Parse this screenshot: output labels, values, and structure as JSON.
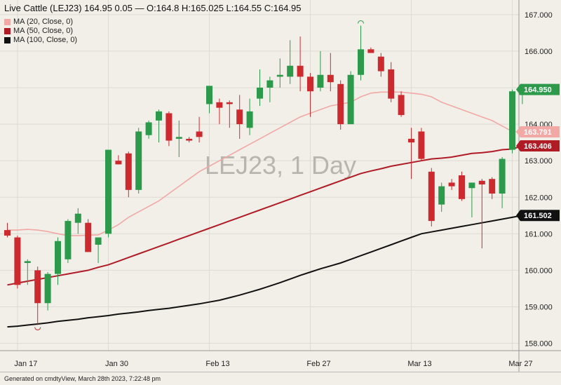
{
  "header": {
    "text": "Live Cattle (LEJ23) 164.95 0.05 — O:164.8 H:165.025 L:164.55 C:164.95"
  },
  "footer": {
    "text": "Generated on cmdtyView, March 28th 2023, 7:22:48 pm"
  },
  "chart_data": {
    "type": "candlestick",
    "symbol": "LEJ23",
    "watermark": "LEJ23, 1 Day",
    "y_range": [
      157.8,
      167.4
    ],
    "y_ticks": [
      158,
      159,
      160,
      161,
      162,
      163,
      164,
      165,
      166,
      167
    ],
    "y_tick_labels": [
      "158.000",
      "159.000",
      "160.000",
      "161.000",
      "162.000",
      "163.000",
      "164.000",
      "165.000",
      "166.000",
      "167.000"
    ],
    "x_tick_labels": [
      {
        "label": "Jan 17",
        "index": 1
      },
      {
        "label": "Jan 30",
        "index": 10
      },
      {
        "label": "Feb 13",
        "index": 20
      },
      {
        "label": "Feb 27",
        "index": 30
      },
      {
        "label": "Mar 13",
        "index": 40
      },
      {
        "label": "Mar 27",
        "index": 50
      }
    ],
    "candles": [
      {
        "o": 161.1,
        "h": 161.3,
        "l": 160.9,
        "c": 160.95
      },
      {
        "o": 160.9,
        "h": 160.95,
        "l": 159.5,
        "c": 159.6
      },
      {
        "o": 160.2,
        "h": 160.3,
        "l": 159.6,
        "c": 160.25
      },
      {
        "o": 160.0,
        "h": 160.1,
        "l": 158.5,
        "c": 159.1
      },
      {
        "o": 159.1,
        "h": 159.95,
        "l": 158.9,
        "c": 159.9
      },
      {
        "o": 159.9,
        "h": 160.9,
        "l": 159.6,
        "c": 160.8
      },
      {
        "o": 160.3,
        "h": 161.4,
        "l": 160.2,
        "c": 161.35
      },
      {
        "o": 161.3,
        "h": 161.7,
        "l": 161.0,
        "c": 161.55
      },
      {
        "o": 161.3,
        "h": 161.4,
        "l": 160.5,
        "c": 160.5
      },
      {
        "o": 160.7,
        "h": 160.9,
        "l": 160.2,
        "c": 160.9
      },
      {
        "o": 161.0,
        "h": 163.3,
        "l": 160.9,
        "c": 163.3
      },
      {
        "o": 163.0,
        "h": 163.15,
        "l": 162.9,
        "c": 162.9
      },
      {
        "o": 163.2,
        "h": 163.25,
        "l": 162.0,
        "c": 162.2
      },
      {
        "o": 162.2,
        "h": 163.9,
        "l": 162.1,
        "c": 163.8
      },
      {
        "o": 163.7,
        "h": 164.1,
        "l": 163.6,
        "c": 164.05
      },
      {
        "o": 164.1,
        "h": 164.4,
        "l": 163.5,
        "c": 164.35
      },
      {
        "o": 164.3,
        "h": 164.35,
        "l": 163.4,
        "c": 163.55
      },
      {
        "o": 163.6,
        "h": 164.1,
        "l": 163.1,
        "c": 163.65
      },
      {
        "o": 163.6,
        "h": 163.65,
        "l": 163.5,
        "c": 163.55
      },
      {
        "o": 163.8,
        "h": 164.2,
        "l": 163.5,
        "c": 163.65
      },
      {
        "o": 164.55,
        "h": 165.05,
        "l": 164.3,
        "c": 165.05
      },
      {
        "o": 164.6,
        "h": 164.7,
        "l": 164.0,
        "c": 164.45
      },
      {
        "o": 164.6,
        "h": 164.65,
        "l": 163.9,
        "c": 164.55
      },
      {
        "o": 164.4,
        "h": 164.8,
        "l": 163.6,
        "c": 164.0
      },
      {
        "o": 163.9,
        "h": 164.7,
        "l": 163.7,
        "c": 164.35
      },
      {
        "o": 164.7,
        "h": 165.5,
        "l": 164.5,
        "c": 165.0
      },
      {
        "o": 165.0,
        "h": 165.3,
        "l": 164.6,
        "c": 165.2
      },
      {
        "o": 165.3,
        "h": 165.8,
        "l": 165.0,
        "c": 165.35
      },
      {
        "o": 165.3,
        "h": 166.3,
        "l": 165.1,
        "c": 165.6
      },
      {
        "o": 165.6,
        "h": 166.4,
        "l": 164.9,
        "c": 165.3
      },
      {
        "o": 165.3,
        "h": 165.4,
        "l": 164.2,
        "c": 164.9
      },
      {
        "o": 165.0,
        "h": 166.0,
        "l": 164.9,
        "c": 165.35
      },
      {
        "o": 165.35,
        "h": 165.95,
        "l": 164.9,
        "c": 165.15
      },
      {
        "o": 165.1,
        "h": 165.2,
        "l": 163.85,
        "c": 164.0
      },
      {
        "o": 164.0,
        "h": 165.45,
        "l": 164.0,
        "c": 165.35
      },
      {
        "o": 165.35,
        "h": 166.7,
        "l": 165.2,
        "c": 166.05
      },
      {
        "o": 166.05,
        "h": 166.1,
        "l": 165.95,
        "c": 165.95
      },
      {
        "o": 165.85,
        "h": 165.95,
        "l": 165.3,
        "c": 165.45
      },
      {
        "o": 165.5,
        "h": 165.7,
        "l": 164.6,
        "c": 164.7
      },
      {
        "o": 164.8,
        "h": 164.9,
        "l": 164.2,
        "c": 164.25
      },
      {
        "o": 163.6,
        "h": 163.9,
        "l": 162.5,
        "c": 163.5
      },
      {
        "o": 163.8,
        "h": 163.9,
        "l": 163.0,
        "c": 163.05
      },
      {
        "o": 162.7,
        "h": 162.8,
        "l": 161.2,
        "c": 161.35
      },
      {
        "o": 161.8,
        "h": 162.4,
        "l": 161.6,
        "c": 162.3
      },
      {
        "o": 162.4,
        "h": 162.5,
        "l": 162.2,
        "c": 162.3
      },
      {
        "o": 162.6,
        "h": 162.7,
        "l": 161.9,
        "c": 161.95
      },
      {
        "o": 162.25,
        "h": 162.4,
        "l": 161.45,
        "c": 162.4
      },
      {
        "o": 162.45,
        "h": 162.5,
        "l": 160.6,
        "c": 162.35
      },
      {
        "o": 162.5,
        "h": 162.55,
        "l": 161.95,
        "c": 162.1
      },
      {
        "o": 162.1,
        "h": 163.1,
        "l": 161.7,
        "c": 163.05
      },
      {
        "o": 163.3,
        "h": 164.95,
        "l": 163.2,
        "c": 164.9
      },
      {
        "o": 164.8,
        "h": 165.025,
        "l": 164.55,
        "c": 164.95
      }
    ],
    "series": [
      {
        "name": "MA (20, Close, 0)",
        "color": "#f2a8a4",
        "last_label": "163.791",
        "values": [
          161.1,
          161.1,
          161.12,
          161.1,
          161.06,
          161.0,
          160.95,
          160.95,
          160.96,
          160.97,
          161.1,
          161.25,
          161.45,
          161.6,
          161.75,
          161.9,
          162.1,
          162.3,
          162.5,
          162.7,
          162.85,
          163.0,
          163.15,
          163.3,
          163.45,
          163.6,
          163.75,
          163.9,
          164.05,
          164.2,
          164.3,
          164.4,
          164.5,
          164.55,
          164.6,
          164.75,
          164.85,
          164.88,
          164.88,
          164.88,
          164.85,
          164.82,
          164.75,
          164.6,
          164.5,
          164.4,
          164.3,
          164.2,
          164.1,
          163.95,
          163.8,
          163.79
        ]
      },
      {
        "name": "MA (50, Close, 0)",
        "color": "#b01c26",
        "last_label": "163.406",
        "values": [
          159.6,
          159.65,
          159.7,
          159.75,
          159.8,
          159.85,
          159.9,
          159.95,
          160.0,
          160.08,
          160.15,
          160.25,
          160.35,
          160.45,
          160.55,
          160.65,
          160.75,
          160.85,
          160.95,
          161.05,
          161.15,
          161.25,
          161.35,
          161.45,
          161.55,
          161.65,
          161.75,
          161.85,
          161.95,
          162.05,
          162.15,
          162.25,
          162.35,
          162.45,
          162.55,
          162.65,
          162.72,
          162.78,
          162.85,
          162.9,
          162.95,
          163.0,
          163.05,
          163.07,
          163.1,
          163.15,
          163.2,
          163.22,
          163.25,
          163.3,
          163.32,
          163.406
        ]
      },
      {
        "name": "MA (100, Close, 0)",
        "color": "#111111",
        "last_label": "161.502",
        "values": [
          158.45,
          158.47,
          158.5,
          158.53,
          158.56,
          158.6,
          158.63,
          158.66,
          158.7,
          158.73,
          158.76,
          158.8,
          158.83,
          158.86,
          158.9,
          158.93,
          158.96,
          159.0,
          159.04,
          159.08,
          159.13,
          159.18,
          159.25,
          159.32,
          159.4,
          159.48,
          159.57,
          159.66,
          159.76,
          159.86,
          159.95,
          160.04,
          160.12,
          160.2,
          160.3,
          160.4,
          160.5,
          160.6,
          160.7,
          160.8,
          160.9,
          161.0,
          161.05,
          161.1,
          161.15,
          161.2,
          161.25,
          161.3,
          161.35,
          161.4,
          161.45,
          161.502
        ]
      }
    ],
    "current_price_label": "164.950",
    "colors": {
      "up": "#2c9a4a",
      "down": "#cc2a2f",
      "background": "#f2efe9",
      "grid": "#dedad3",
      "axis": "#999999"
    },
    "marker_high_index": 35,
    "marker_low_index": 3
  }
}
